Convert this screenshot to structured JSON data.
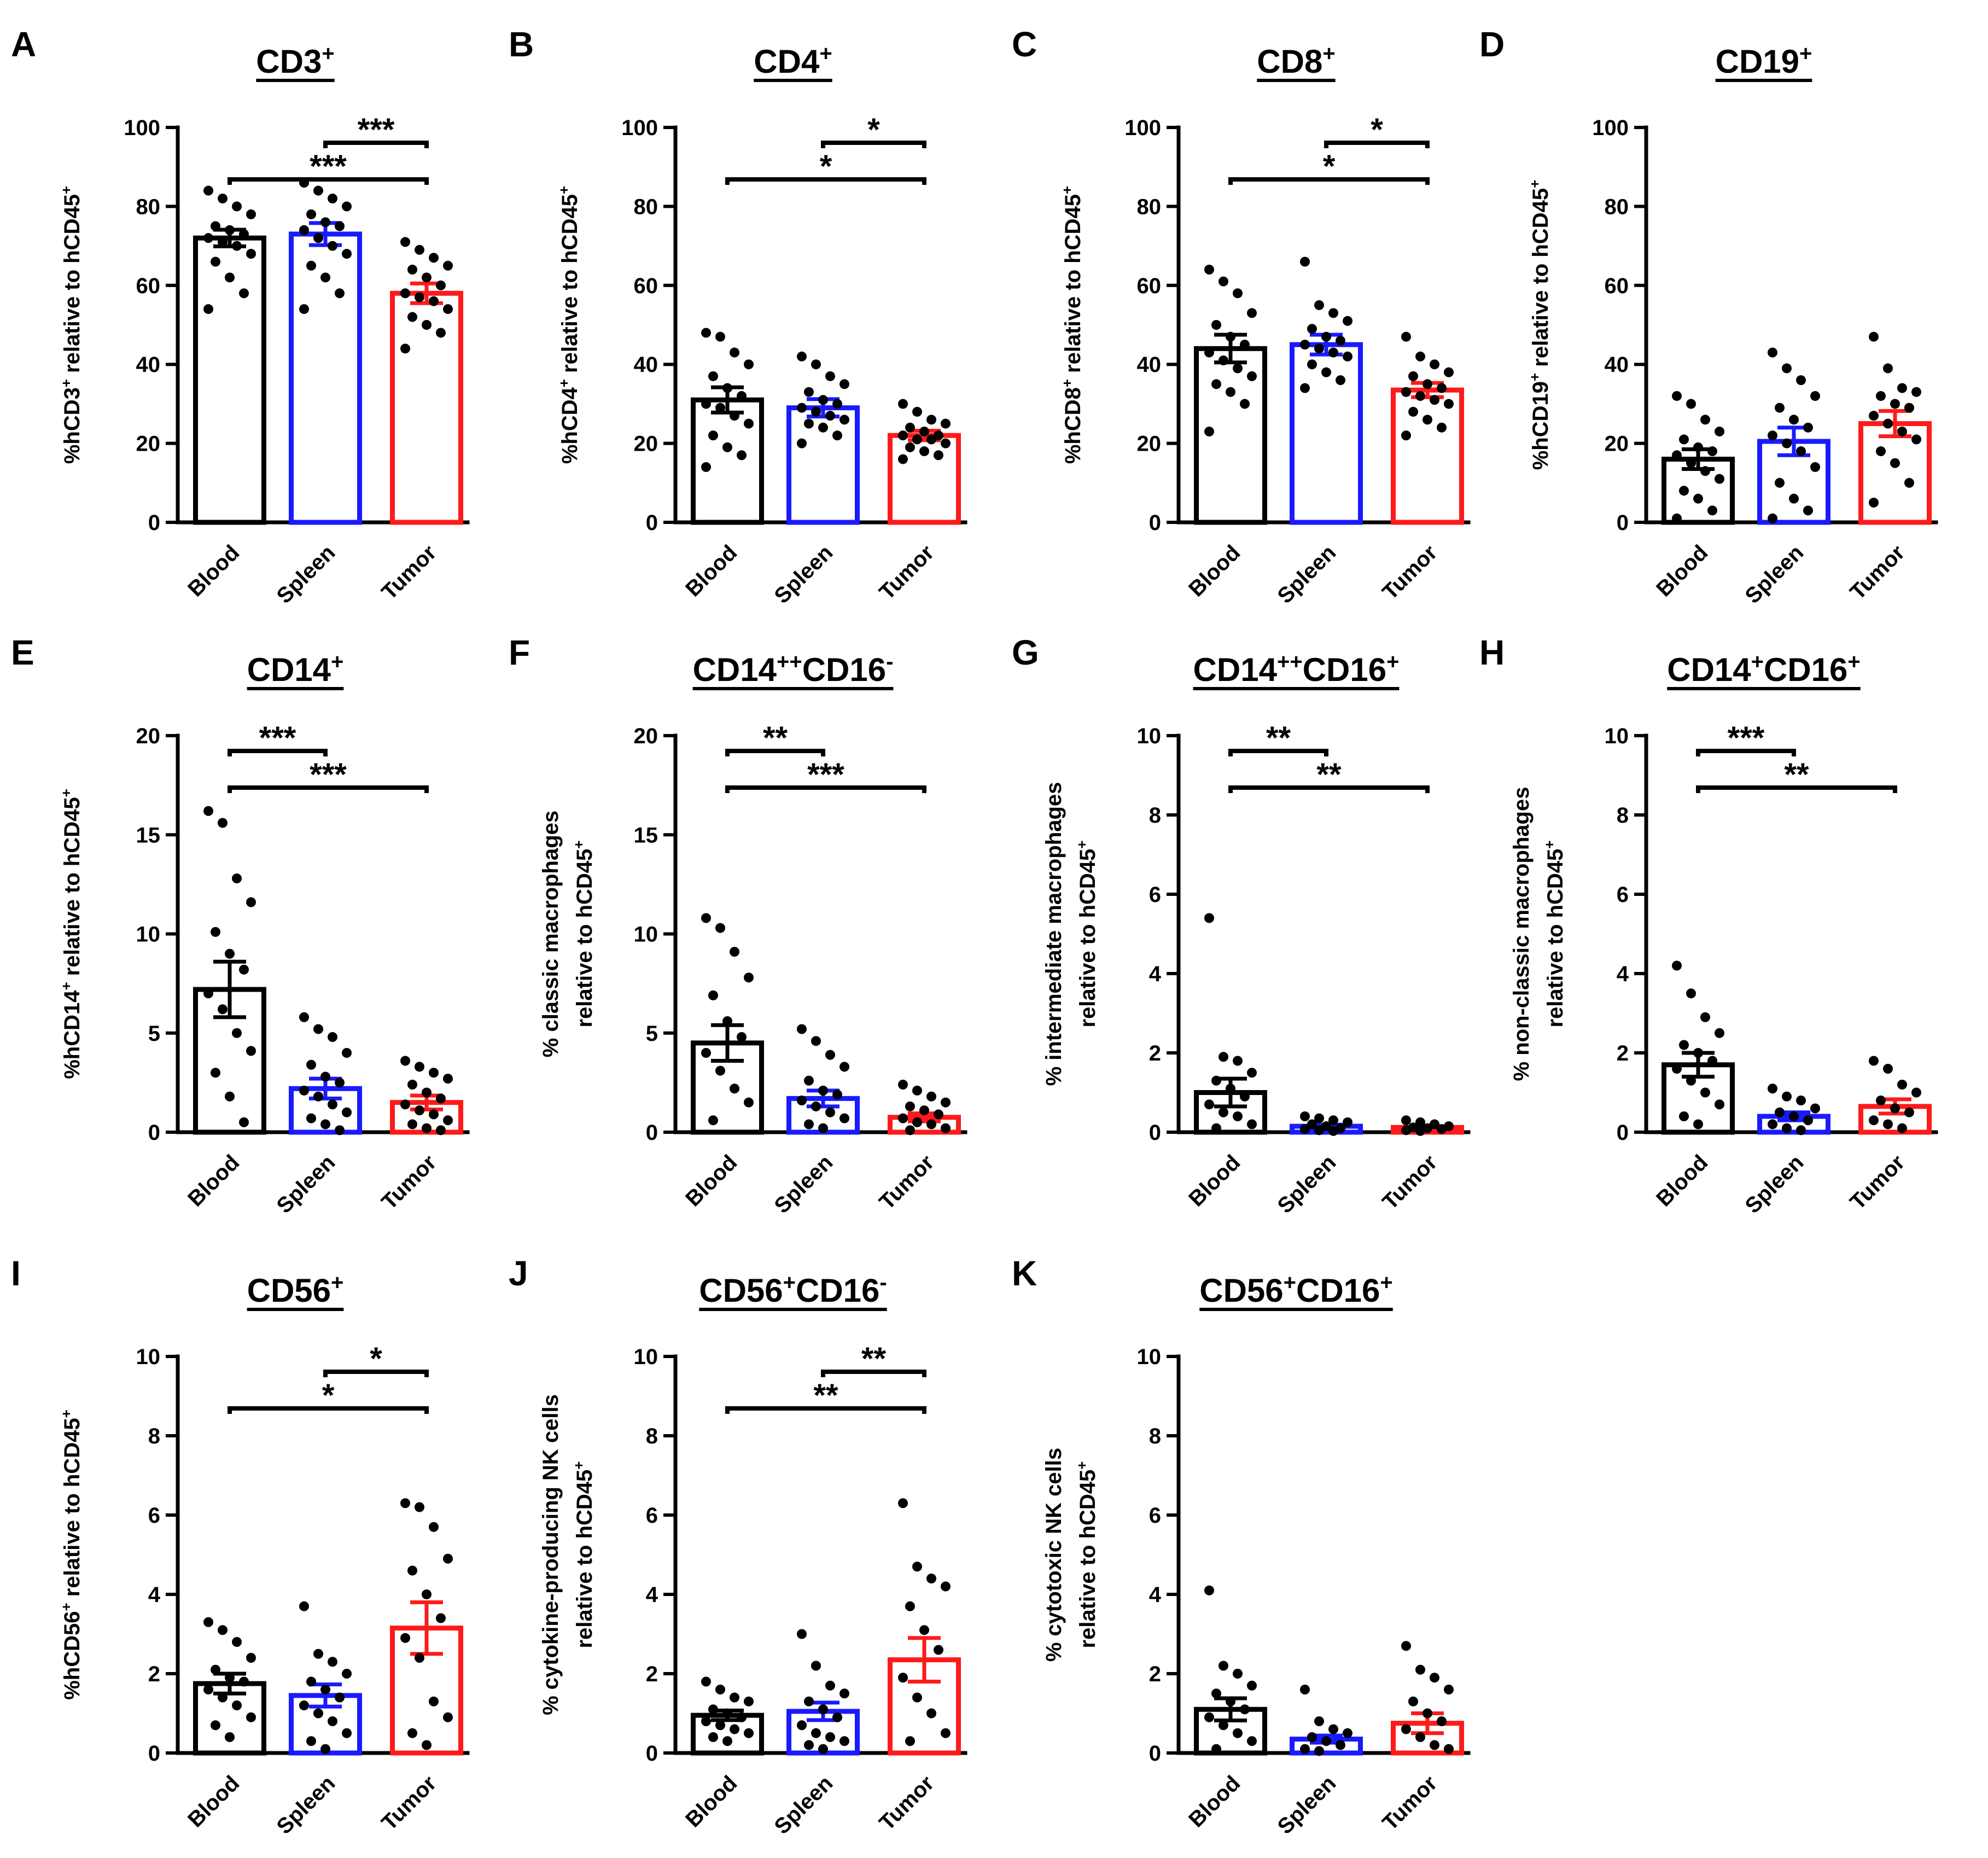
{
  "figure": {
    "categories": [
      "Blood",
      "Spleen",
      "Tumor"
    ],
    "colors": {
      "Blood": "#000000",
      "Spleen": "#1a1aff",
      "Tumor": "#ff1a1a",
      "dots": "#000000"
    }
  },
  "chart_data": [
    {
      "letter": "A",
      "type": "bar",
      "title": "CD3",
      "title_sup": "+",
      "ylabel": [
        {
          "t": "%hCD3"
        },
        {
          "t": "+",
          "sup": true
        },
        {
          "t": " relative to hCD45"
        },
        {
          "t": "+",
          "sup": true
        }
      ],
      "ylim": [
        0,
        100
      ],
      "yticks": [
        0,
        20,
        40,
        60,
        80,
        100
      ],
      "categories": [
        "Blood",
        "Spleen",
        "Tumor"
      ],
      "means": [
        72,
        73,
        58
      ],
      "sem": [
        2.1,
        2.8,
        2.5
      ],
      "points": [
        [
          84,
          82,
          80,
          78,
          75,
          74,
          73,
          72,
          71,
          70,
          68,
          66,
          62,
          58,
          54
        ],
        [
          86,
          84,
          82,
          80,
          78,
          76,
          75,
          74,
          72,
          70,
          68,
          65,
          62,
          58,
          54
        ],
        [
          71,
          69,
          67,
          65,
          64,
          62,
          60,
          58,
          57,
          56,
          54,
          52,
          50,
          48,
          44
        ]
      ],
      "significance": [
        {
          "from": 0,
          "to": 2,
          "label": "***",
          "level": 1
        },
        {
          "from": 1,
          "to": 2,
          "label": "***",
          "level": 2
        }
      ]
    },
    {
      "letter": "B",
      "type": "bar",
      "title": "CD4",
      "title_sup": "+",
      "ylabel": [
        {
          "t": "%hCD4"
        },
        {
          "t": "+",
          "sup": true
        },
        {
          "t": " relative to hCD45"
        },
        {
          "t": "+",
          "sup": true
        }
      ],
      "ylim": [
        0,
        100
      ],
      "yticks": [
        0,
        20,
        40,
        60,
        80,
        100
      ],
      "categories": [
        "Blood",
        "Spleen",
        "Tumor"
      ],
      "means": [
        31,
        29,
        22
      ],
      "sem": [
        3.2,
        2.2,
        1.2
      ],
      "points": [
        [
          48,
          47,
          43,
          40,
          37,
          34,
          32,
          30,
          29,
          27,
          25,
          22,
          19,
          17,
          14
        ],
        [
          42,
          40,
          37,
          35,
          33,
          31,
          30,
          29,
          28,
          27,
          26,
          25,
          24,
          22,
          20
        ],
        [
          30,
          28,
          26,
          25,
          24,
          23,
          22,
          22,
          21,
          21,
          20,
          19,
          18,
          17,
          16
        ]
      ],
      "significance": [
        {
          "from": 0,
          "to": 2,
          "label": "*",
          "level": 1
        },
        {
          "from": 1,
          "to": 2,
          "label": "*",
          "level": 2
        }
      ]
    },
    {
      "letter": "C",
      "type": "bar",
      "title": "CD8",
      "title_sup": "+",
      "ylabel": [
        {
          "t": "%hCD8"
        },
        {
          "t": "+",
          "sup": true
        },
        {
          "t": " relative to hCD45"
        },
        {
          "t": "+",
          "sup": true
        }
      ],
      "ylim": [
        0,
        100
      ],
      "yticks": [
        0,
        20,
        40,
        60,
        80,
        100
      ],
      "categories": [
        "Blood",
        "Spleen",
        "Tumor"
      ],
      "means": [
        44,
        45,
        33.5
      ],
      "sem": [
        3.5,
        2.5,
        1.8
      ],
      "points": [
        [
          64,
          61,
          58,
          53,
          50,
          47,
          45,
          43,
          41,
          39,
          37,
          35,
          33,
          30,
          23
        ],
        [
          66,
          55,
          53,
          51,
          49,
          47,
          46,
          45,
          44,
          43,
          42,
          40,
          38,
          36,
          34
        ],
        [
          47,
          42,
          40,
          38,
          37,
          35,
          34,
          33,
          32,
          31,
          30,
          28,
          26,
          24,
          22
        ]
      ],
      "significance": [
        {
          "from": 0,
          "to": 2,
          "label": "*",
          "level": 1
        },
        {
          "from": 1,
          "to": 2,
          "label": "*",
          "level": 2
        }
      ]
    },
    {
      "letter": "D",
      "type": "bar",
      "title": "CD19",
      "title_sup": "+",
      "ylabel": [
        {
          "t": "%hCD19"
        },
        {
          "t": "+",
          "sup": true
        },
        {
          "t": " relative to hCD45"
        },
        {
          "t": "+",
          "sup": true
        }
      ],
      "ylim": [
        0,
        100
      ],
      "yticks": [
        0,
        20,
        40,
        60,
        80,
        100
      ],
      "categories": [
        "Blood",
        "Spleen",
        "Tumor"
      ],
      "means": [
        16,
        20.5,
        25
      ],
      "sem": [
        2.5,
        3.5,
        3.2
      ],
      "points": [
        [
          32,
          30,
          26,
          23,
          21,
          19,
          18,
          17,
          15,
          13,
          11,
          8,
          6,
          3,
          1
        ],
        [
          43,
          39,
          36,
          32,
          29,
          26,
          24,
          22,
          20,
          18,
          14,
          10,
          6,
          3,
          1
        ],
        [
          47,
          39,
          34,
          33,
          32,
          30,
          29,
          27,
          25,
          23,
          21,
          18,
          15,
          10,
          5
        ]
      ],
      "significance": []
    },
    {
      "letter": "E",
      "type": "bar",
      "title": "CD14",
      "title_sup": "+",
      "ylabel": [
        {
          "t": "%hCD14"
        },
        {
          "t": "+",
          "sup": true
        },
        {
          "t": " relative to hCD45"
        },
        {
          "t": "+",
          "sup": true
        }
      ],
      "ylim": [
        0,
        20
      ],
      "yticks": [
        0,
        5,
        10,
        15,
        20
      ],
      "categories": [
        "Blood",
        "Spleen",
        "Tumor"
      ],
      "means": [
        7.2,
        2.2,
        1.5
      ],
      "sem": [
        1.4,
        0.5,
        0.35
      ],
      "points": [
        [
          16.2,
          15.6,
          12.8,
          11.6,
          10.1,
          9.0,
          8.2,
          7.0,
          6.2,
          5.0,
          4.1,
          3.0,
          1.8,
          0.5
        ],
        [
          5.8,
          5.2,
          4.8,
          4.0,
          3.4,
          2.8,
          2.5,
          2.1,
          1.8,
          1.4,
          1.0,
          0.7,
          0.4,
          0.1
        ],
        [
          3.6,
          3.3,
          3.0,
          2.7,
          2.4,
          2.0,
          1.7,
          1.4,
          1.1,
          0.9,
          0.6,
          0.4,
          0.2,
          0.1
        ]
      ],
      "significance": [
        {
          "from": 0,
          "to": 2,
          "label": "***",
          "level": 1
        },
        {
          "from": 0,
          "to": 1,
          "label": "***",
          "level": 2
        }
      ]
    },
    {
      "letter": "F",
      "type": "bar",
      "title": "CD14",
      "title_sup": "++",
      "title2": "CD16",
      "title2_sup": "-",
      "ylabel_lines": [
        [
          {
            "t": "% classic macrophages"
          }
        ],
        [
          {
            "t": "relative to hCD45"
          },
          {
            "t": "+",
            "sup": true
          }
        ]
      ],
      "ylim": [
        0,
        20
      ],
      "yticks": [
        0,
        5,
        10,
        15,
        20
      ],
      "categories": [
        "Blood",
        "Spleen",
        "Tumor"
      ],
      "means": [
        4.5,
        1.7,
        0.75
      ],
      "sem": [
        0.9,
        0.4,
        0.2
      ],
      "points": [
        [
          10.8,
          10.3,
          9.1,
          7.8,
          6.9,
          5.6,
          4.8,
          4.0,
          3.1,
          2.2,
          1.5,
          0.6
        ],
        [
          5.2,
          4.6,
          3.9,
          3.3,
          2.6,
          2.1,
          1.9,
          1.6,
          1.3,
          1.0,
          0.7,
          0.4,
          0.2
        ],
        [
          2.4,
          2.1,
          1.8,
          1.5,
          1.3,
          1.1,
          0.9,
          0.7,
          0.5,
          0.4,
          0.2,
          0.1
        ]
      ],
      "significance": [
        {
          "from": 0,
          "to": 2,
          "label": "***",
          "level": 1
        },
        {
          "from": 0,
          "to": 1,
          "label": "**",
          "level": 2
        }
      ]
    },
    {
      "letter": "G",
      "type": "bar",
      "title": "CD14",
      "title_sup": "++",
      "title2": "CD16",
      "title2_sup": "+",
      "ylabel_lines": [
        [
          {
            "t": "% intermediate macrophages"
          }
        ],
        [
          {
            "t": "relative to hCD45"
          },
          {
            "t": "+",
            "sup": true
          }
        ]
      ],
      "ylim": [
        0,
        10
      ],
      "yticks": [
        0,
        2,
        4,
        6,
        8,
        10
      ],
      "categories": [
        "Blood",
        "Spleen",
        "Tumor"
      ],
      "means": [
        1.0,
        0.15,
        0.12
      ],
      "sem": [
        0.35,
        0.04,
        0.03
      ],
      "points": [
        [
          5.4,
          1.9,
          1.8,
          1.5,
          1.3,
          1.1,
          0.9,
          0.7,
          0.5,
          0.4,
          0.2,
          0.1
        ],
        [
          0.4,
          0.35,
          0.3,
          0.25,
          0.2,
          0.15,
          0.1,
          0.08,
          0.05,
          0.03
        ],
        [
          0.3,
          0.25,
          0.2,
          0.15,
          0.12,
          0.1,
          0.08,
          0.05,
          0.03
        ]
      ],
      "significance": [
        {
          "from": 0,
          "to": 2,
          "label": "**",
          "level": 1
        },
        {
          "from": 0,
          "to": 1,
          "label": "**",
          "level": 2
        }
      ]
    },
    {
      "letter": "H",
      "type": "bar",
      "title": "CD14",
      "title_sup": "+",
      "title2": "CD16",
      "title2_sup": "+",
      "ylabel_lines": [
        [
          {
            "t": "% non-classic macrophages"
          }
        ],
        [
          {
            "t": "relative to hCD45"
          },
          {
            "t": "+",
            "sup": true
          }
        ]
      ],
      "ylim": [
        0,
        10
      ],
      "yticks": [
        0,
        2,
        4,
        6,
        8,
        10
      ],
      "categories": [
        "Blood",
        "Spleen",
        "Tumor"
      ],
      "means": [
        1.7,
        0.4,
        0.65
      ],
      "sem": [
        0.3,
        0.1,
        0.18
      ],
      "points": [
        [
          4.2,
          3.5,
          2.9,
          2.5,
          2.2,
          2.0,
          1.8,
          1.6,
          1.3,
          1.0,
          0.7,
          0.4,
          0.2
        ],
        [
          1.1,
          0.9,
          0.8,
          0.6,
          0.5,
          0.4,
          0.3,
          0.2,
          0.1,
          0.05
        ],
        [
          1.8,
          1.6,
          1.2,
          1.0,
          0.8,
          0.6,
          0.5,
          0.3,
          0.2,
          0.1
        ]
      ],
      "significance": [
        {
          "from": 0,
          "to": 2,
          "label": "**",
          "level": 1
        },
        {
          "from": 0,
          "to": 1,
          "label": "***",
          "level": 2
        }
      ]
    },
    {
      "letter": "I",
      "type": "bar",
      "title": "CD56",
      "title_sup": "+",
      "ylabel": [
        {
          "t": "%hCD56"
        },
        {
          "t": "+",
          "sup": true
        },
        {
          "t": " relative to hCD45"
        },
        {
          "t": "+",
          "sup": true
        }
      ],
      "ylim": [
        0,
        10
      ],
      "yticks": [
        0,
        2,
        4,
        6,
        8,
        10
      ],
      "categories": [
        "Blood",
        "Spleen",
        "Tumor"
      ],
      "means": [
        1.75,
        1.45,
        3.15
      ],
      "sem": [
        0.25,
        0.28,
        0.65
      ],
      "points": [
        [
          3.3,
          3.1,
          2.8,
          2.4,
          2.1,
          1.9,
          1.8,
          1.6,
          1.4,
          1.2,
          0.9,
          0.7,
          0.4
        ],
        [
          3.7,
          2.5,
          2.3,
          2.0,
          1.8,
          1.6,
          1.4,
          1.2,
          1.0,
          0.8,
          0.5,
          0.3,
          0.1
        ],
        [
          6.3,
          6.2,
          5.7,
          4.9,
          4.6,
          4.0,
          3.4,
          2.9,
          2.4,
          1.3,
          0.9,
          0.5,
          0.2
        ]
      ],
      "significance": [
        {
          "from": 0,
          "to": 2,
          "label": "*",
          "level": 1
        },
        {
          "from": 1,
          "to": 2,
          "label": "*",
          "level": 2
        }
      ]
    },
    {
      "letter": "J",
      "type": "bar",
      "title": "CD56",
      "title_sup": "+",
      "title2": "CD16",
      "title2_sup": "-",
      "ylabel_lines": [
        [
          {
            "t": "% cytokine-producing NK cells"
          }
        ],
        [
          {
            "t": "relative to hCD45"
          },
          {
            "t": "+",
            "sup": true
          }
        ]
      ],
      "ylim": [
        0,
        10
      ],
      "yticks": [
        0,
        2,
        4,
        6,
        8,
        10
      ],
      "categories": [
        "Blood",
        "Spleen",
        "Tumor"
      ],
      "means": [
        0.95,
        1.05,
        2.35
      ],
      "sem": [
        0.12,
        0.22,
        0.55
      ],
      "points": [
        [
          1.8,
          1.6,
          1.4,
          1.3,
          1.1,
          1.0,
          0.9,
          0.8,
          0.7,
          0.6,
          0.5,
          0.4,
          0.3
        ],
        [
          3.0,
          2.2,
          1.7,
          1.5,
          1.3,
          1.1,
          0.9,
          0.7,
          0.5,
          0.4,
          0.3,
          0.2,
          0.1
        ],
        [
          6.3,
          4.7,
          4.4,
          4.2,
          3.7,
          3.1,
          2.6,
          1.9,
          1.4,
          1.0,
          0.5,
          0.3
        ]
      ],
      "significance": [
        {
          "from": 0,
          "to": 2,
          "label": "**",
          "level": 1
        },
        {
          "from": 1,
          "to": 2,
          "label": "**",
          "level": 2
        }
      ]
    },
    {
      "letter": "K",
      "type": "bar",
      "title": "CD56",
      "title_sup": "+",
      "title2": "CD16",
      "title2_sup": "+",
      "ylabel_lines": [
        [
          {
            "t": "% cytotoxic NK cells"
          }
        ],
        [
          {
            "t": "relative to hCD45"
          },
          {
            "t": "+",
            "sup": true
          }
        ]
      ],
      "ylim": [
        0,
        10
      ],
      "yticks": [
        0,
        2,
        4,
        6,
        8,
        10
      ],
      "categories": [
        "Blood",
        "Spleen",
        "Tumor"
      ],
      "means": [
        1.1,
        0.35,
        0.75
      ],
      "sem": [
        0.28,
        0.09,
        0.25
      ],
      "points": [
        [
          4.1,
          2.2,
          2.0,
          1.7,
          1.5,
          1.3,
          1.1,
          0.9,
          0.7,
          0.5,
          0.3,
          0.1
        ],
        [
          1.6,
          0.8,
          0.6,
          0.5,
          0.4,
          0.3,
          0.2,
          0.1,
          0.05
        ],
        [
          2.7,
          2.1,
          1.9,
          1.6,
          1.3,
          1.0,
          0.8,
          0.6,
          0.4,
          0.2,
          0.1
        ]
      ],
      "significance": []
    }
  ]
}
